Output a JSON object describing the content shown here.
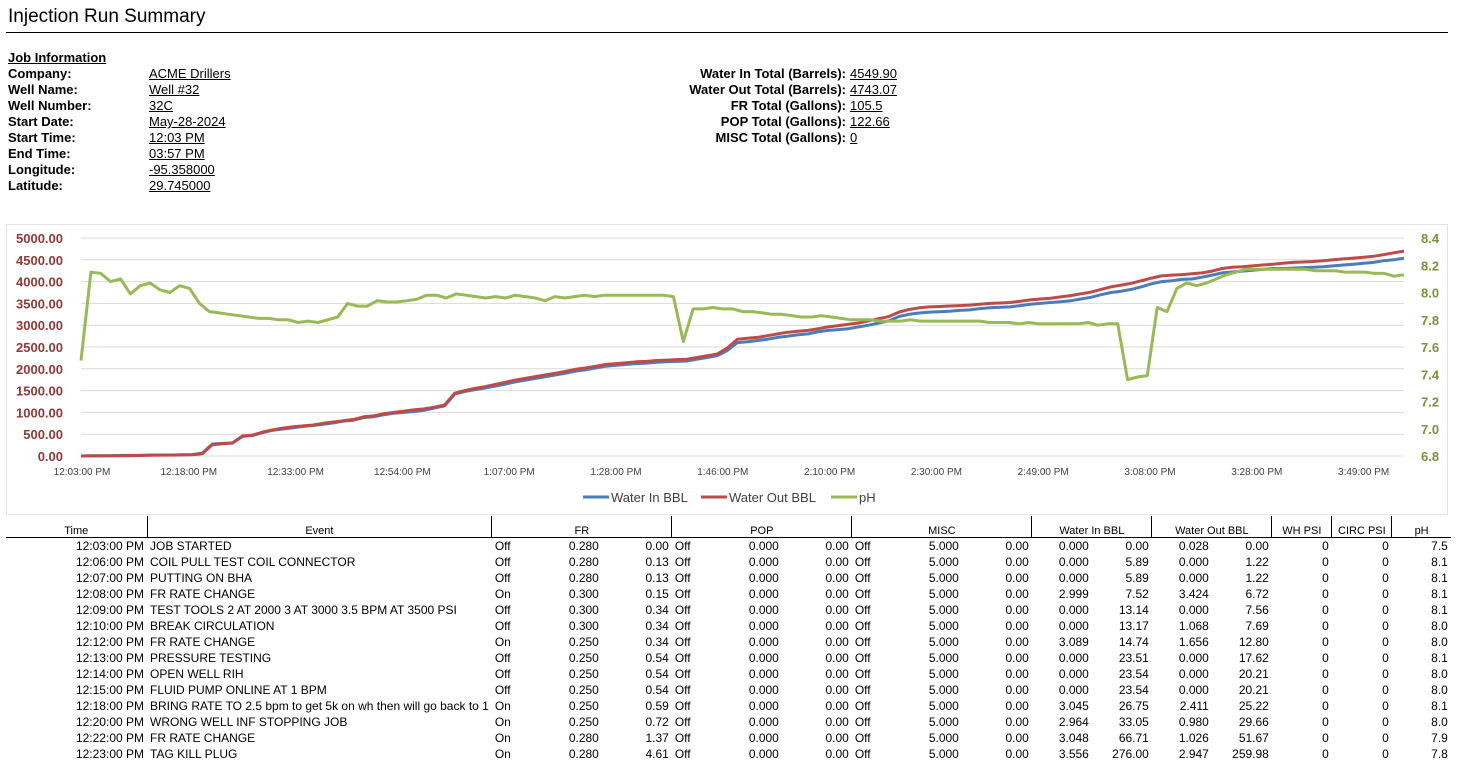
{
  "title": "Injection Run Summary",
  "job": {
    "heading": "Job Information",
    "fields": [
      {
        "label": "Company:",
        "value": "ACME Drillers"
      },
      {
        "label": "Well Name:",
        "value": "Well #32"
      },
      {
        "label": "Well Number:",
        "value": "32C"
      },
      {
        "label": "Start Date:",
        "value": "May-28-2024"
      },
      {
        "label": "Start Time:",
        "value": "12:03 PM"
      },
      {
        "label": "End Time:",
        "value": "03:57 PM"
      },
      {
        "label": "Longitude:",
        "value": "-95.358000"
      },
      {
        "label": "Latitude:",
        "value": "29.745000"
      }
    ]
  },
  "totals": [
    {
      "label": "Water In Total (Barrels):",
      "value": "4549.90"
    },
    {
      "label": "Water Out Total (Barrels):",
      "value": "4743.07"
    },
    {
      "label": "FR Total (Gallons):",
      "value": "105.5"
    },
    {
      "label": "POP Total (Gallons):",
      "value": "122.66"
    },
    {
      "label": "MISC Total (Gallons):",
      "value": "0"
    }
  ],
  "colors": {
    "water_in": "#4a7ebb",
    "water_out": "#be4b48",
    "ph": "#98b954",
    "left_axis": "#953735",
    "right_axis": "#77933c"
  },
  "chart_data": {
    "type": "line",
    "title": "",
    "x_ticks": [
      "12:03:00 PM",
      "12:18:00 PM",
      "12:33:00 PM",
      "12:54:00 PM",
      "1:07:00 PM",
      "1:28:00 PM",
      "1:46:00 PM",
      "2:10:00 PM",
      "2:30:00 PM",
      "2:49:00 PM",
      "3:08:00 PM",
      "3:28:00 PM",
      "3:49:00 PM"
    ],
    "y_left": {
      "ticks": [
        "0.00",
        "500.00",
        "1000.00",
        "1500.00",
        "2000.00",
        "2500.00",
        "3000.00",
        "3500.00",
        "4000.00",
        "4500.00",
        "5000.00"
      ],
      "min": 0,
      "max": 5000
    },
    "y_right": {
      "ticks": [
        "6.8",
        "7.0",
        "7.2",
        "7.4",
        "7.6",
        "7.8",
        "8.0",
        "8.2",
        "8.4"
      ],
      "min": 6.8,
      "max": 8.4
    },
    "legend": [
      "Water In BBL",
      "Water Out BBL",
      "pH"
    ],
    "series": [
      {
        "name": "Water In BBL",
        "axis": "left",
        "values": [
          0,
          5.89,
          5.89,
          7.52,
          13.14,
          13.17,
          14.74,
          23.51,
          23.54,
          23.54,
          26.75,
          33.05,
          66.71,
          276,
          290,
          295,
          450,
          470,
          540,
          590,
          620,
          650,
          680,
          700,
          730,
          760,
          800,
          820,
          880,
          900,
          950,
          980,
          1000,
          1020,
          1050,
          1100,
          1150,
          1420,
          1480,
          1520,
          1560,
          1600,
          1650,
          1700,
          1740,
          1780,
          1820,
          1860,
          1900,
          1950,
          1980,
          2020,
          2060,
          2080,
          2100,
          2120,
          2130,
          2150,
          2160,
          2170,
          2180,
          2220,
          2260,
          2300,
          2420,
          2600,
          2620,
          2650,
          2680,
          2720,
          2750,
          2780,
          2800,
          2850,
          2880,
          2900,
          2920,
          2960,
          3000,
          3050,
          3100,
          3200,
          3250,
          3280,
          3300,
          3310,
          3320,
          3340,
          3350,
          3380,
          3400,
          3410,
          3420,
          3450,
          3480,
          3500,
          3520,
          3540,
          3560,
          3600,
          3640,
          3700,
          3750,
          3780,
          3820,
          3880,
          3950,
          4000,
          4020,
          4050,
          4060,
          4100,
          4150,
          4200,
          4220,
          4240,
          4260,
          4280,
          4300,
          4300,
          4310,
          4320,
          4330,
          4340,
          4360,
          4380,
          4400,
          4420,
          4440,
          4480,
          4500,
          4540
        ]
      },
      {
        "name": "Water Out BBL",
        "axis": "left",
        "values": [
          0.028,
          1.22,
          1.22,
          6.72,
          7.56,
          7.69,
          12.8,
          17.62,
          20.21,
          20.21,
          25.22,
          29.66,
          51.67,
          259.98,
          280,
          300,
          460,
          480,
          550,
          600,
          640,
          670,
          690,
          710,
          750,
          780,
          810,
          840,
          900,
          920,
          970,
          1000,
          1030,
          1060,
          1080,
          1120,
          1170,
          1440,
          1500,
          1550,
          1590,
          1640,
          1690,
          1740,
          1780,
          1820,
          1860,
          1900,
          1940,
          1990,
          2020,
          2060,
          2100,
          2120,
          2140,
          2160,
          2170,
          2190,
          2200,
          2210,
          2220,
          2260,
          2300,
          2340,
          2480,
          2680,
          2700,
          2720,
          2760,
          2800,
          2840,
          2860,
          2880,
          2920,
          2960,
          2990,
          3020,
          3050,
          3100,
          3150,
          3200,
          3300,
          3360,
          3400,
          3420,
          3430,
          3440,
          3450,
          3460,
          3480,
          3500,
          3510,
          3520,
          3550,
          3580,
          3600,
          3620,
          3650,
          3680,
          3720,
          3760,
          3820,
          3880,
          3920,
          3960,
          4020,
          4080,
          4130,
          4150,
          4160,
          4180,
          4200,
          4240,
          4300,
          4330,
          4340,
          4360,
          4380,
          4400,
          4420,
          4440,
          4450,
          4460,
          4480,
          4500,
          4520,
          4540,
          4560,
          4580,
          4620,
          4660,
          4700
        ]
      },
      {
        "name": "pH",
        "axis": "right",
        "values": [
          7.5,
          8.15,
          8.14,
          8.08,
          8.1,
          7.99,
          8.05,
          8.07,
          8.02,
          8.0,
          8.05,
          8.03,
          7.92,
          7.86,
          7.85,
          7.84,
          7.83,
          7.82,
          7.81,
          7.81,
          7.8,
          7.8,
          7.78,
          7.79,
          7.78,
          7.8,
          7.82,
          7.92,
          7.9,
          7.9,
          7.94,
          7.93,
          7.93,
          7.94,
          7.95,
          7.98,
          7.98,
          7.96,
          7.99,
          7.98,
          7.97,
          7.96,
          7.97,
          7.96,
          7.98,
          7.97,
          7.96,
          7.94,
          7.97,
          7.96,
          7.97,
          7.98,
          7.97,
          7.98,
          7.98,
          7.98,
          7.98,
          7.98,
          7.98,
          7.98,
          7.97,
          7.64,
          7.88,
          7.88,
          7.89,
          7.88,
          7.88,
          7.86,
          7.86,
          7.85,
          7.84,
          7.84,
          7.83,
          7.82,
          7.82,
          7.83,
          7.82,
          7.81,
          7.8,
          7.8,
          7.8,
          7.79,
          7.79,
          7.79,
          7.8,
          7.79,
          7.79,
          7.79,
          7.79,
          7.79,
          7.79,
          7.79,
          7.78,
          7.78,
          7.78,
          7.77,
          7.78,
          7.77,
          7.77,
          7.77,
          7.77,
          7.77,
          7.78,
          7.76,
          7.77,
          7.77,
          7.36,
          7.38,
          7.39,
          7.89,
          7.86,
          8.03,
          8.07,
          8.05,
          8.07,
          8.1,
          8.13,
          8.15,
          8.17,
          8.17,
          8.17,
          8.17,
          8.17,
          8.17,
          8.17,
          8.16,
          8.16,
          8.16,
          8.15,
          8.15,
          8.15,
          8.14,
          8.14,
          8.12,
          8.13
        ]
      }
    ]
  },
  "table": {
    "headers": [
      "Time",
      "Event",
      "FR",
      "POP",
      "MISC",
      "Water In BBL",
      "Water Out BBL",
      "WH PSI",
      "CIRC PSI",
      "pH"
    ],
    "rows": [
      [
        "12:03:00 PM",
        "JOB STARTED",
        "Off",
        "0.280",
        "0.00",
        "Off",
        "0.000",
        "0.00",
        "Off",
        "5.000",
        "0.00",
        "0.000",
        "0.00",
        "0.028",
        "0.00",
        "0",
        "0",
        "7.5"
      ],
      [
        "12:06:00 PM",
        "COIL PULL TEST COIL CONNECTOR",
        "Off",
        "0.280",
        "0.13",
        "Off",
        "0.000",
        "0.00",
        "Off",
        "5.000",
        "0.00",
        "0.000",
        "5.89",
        "0.000",
        "1.22",
        "0",
        "0",
        "8.1"
      ],
      [
        "12:07:00 PM",
        "PUTTING ON BHA",
        "Off",
        "0.280",
        "0.13",
        "Off",
        "0.000",
        "0.00",
        "Off",
        "5.000",
        "0.00",
        "0.000",
        "5.89",
        "0.000",
        "1.22",
        "0",
        "0",
        "8.1"
      ],
      [
        "12:08:00 PM",
        "FR RATE CHANGE",
        "On",
        "0.300",
        "0.15",
        "Off",
        "0.000",
        "0.00",
        "Off",
        "5.000",
        "0.00",
        "2.999",
        "7.52",
        "3.424",
        "6.72",
        "0",
        "0",
        "8.1"
      ],
      [
        "12:09:00 PM",
        "TEST TOOLS 2 AT 2000 3 AT 3000 3.5 BPM AT 3500 PSI",
        "Off",
        "0.300",
        "0.34",
        "Off",
        "0.000",
        "0.00",
        "Off",
        "5.000",
        "0.00",
        "0.000",
        "13.14",
        "0.000",
        "7.56",
        "0",
        "0",
        "8.1"
      ],
      [
        "12:10:00 PM",
        "BREAK CIRCULATION",
        "Off",
        "0.300",
        "0.34",
        "Off",
        "0.000",
        "0.00",
        "Off",
        "5.000",
        "0.00",
        "0.000",
        "13.17",
        "1.068",
        "7.69",
        "0",
        "0",
        "8.0"
      ],
      [
        "12:12:00 PM",
        "FR RATE CHANGE",
        "On",
        "0.250",
        "0.34",
        "Off",
        "0.000",
        "0.00",
        "Off",
        "5.000",
        "0.00",
        "3.089",
        "14.74",
        "1.656",
        "12.80",
        "0",
        "0",
        "8.0"
      ],
      [
        "12:13:00 PM",
        "PRESSURE TESTING",
        "Off",
        "0.250",
        "0.54",
        "Off",
        "0.000",
        "0.00",
        "Off",
        "5.000",
        "0.00",
        "0.000",
        "23.51",
        "0.000",
        "17.62",
        "0",
        "0",
        "8.1"
      ],
      [
        "12:14:00 PM",
        "OPEN WELL RIH",
        "Off",
        "0.250",
        "0.54",
        "Off",
        "0.000",
        "0.00",
        "Off",
        "5.000",
        "0.00",
        "0.000",
        "23.54",
        "0.000",
        "20.21",
        "0",
        "0",
        "8.0"
      ],
      [
        "12:15:00 PM",
        "FLUID PUMP ONLINE AT 1 BPM",
        "Off",
        "0.250",
        "0.54",
        "Off",
        "0.000",
        "0.00",
        "Off",
        "5.000",
        "0.00",
        "0.000",
        "23.54",
        "0.000",
        "20.21",
        "0",
        "0",
        "8.0"
      ],
      [
        "12:18:00 PM",
        "BRING RATE TO 2.5 bpm to get 5k on wh then will go back to 1",
        "On",
        "0.250",
        "0.59",
        "Off",
        "0.000",
        "0.00",
        "Off",
        "5.000",
        "0.00",
        "3.045",
        "26.75",
        "2.411",
        "25.22",
        "0",
        "0",
        "8.1"
      ],
      [
        "12:20:00 PM",
        "WRONG WELL INF STOPPING JOB",
        "On",
        "0.250",
        "0.72",
        "Off",
        "0.000",
        "0.00",
        "Off",
        "5.000",
        "0.00",
        "2.964",
        "33.05",
        "0.980",
        "29.66",
        "0",
        "0",
        "8.0"
      ],
      [
        "12:22:00 PM",
        "FR RATE CHANGE",
        "On",
        "0.280",
        "1.37",
        "Off",
        "0.000",
        "0.00",
        "Off",
        "5.000",
        "0.00",
        "3.048",
        "66.71",
        "1.026",
        "51.67",
        "0",
        "0",
        "7.9"
      ],
      [
        "12:23:00 PM",
        "TAG KILL PLUG",
        "On",
        "0.280",
        "4.61",
        "Off",
        "0.000",
        "0.00",
        "Off",
        "5.000",
        "0.00",
        "3.556",
        "276.00",
        "2.947",
        "259.98",
        "0",
        "0",
        "7.8"
      ]
    ]
  }
}
